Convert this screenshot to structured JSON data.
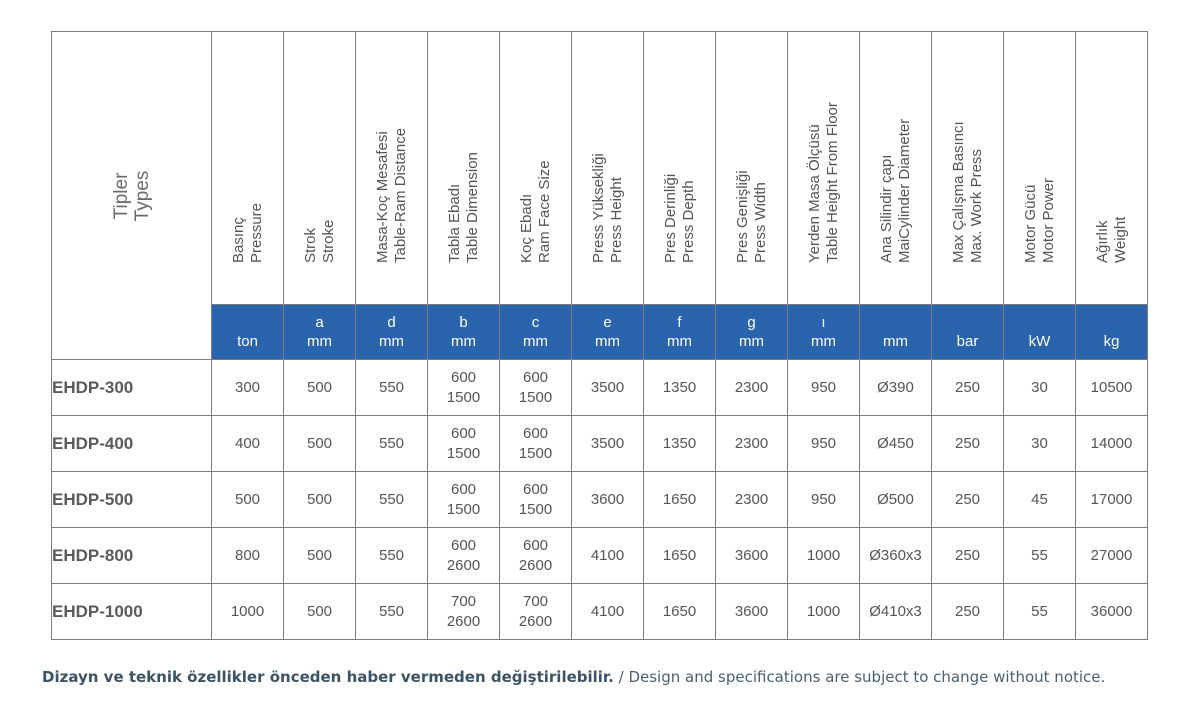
{
  "types_header": {
    "tr": "Tipler",
    "en": "Types"
  },
  "columns": [
    {
      "tr": "Basınç",
      "en": "Pressure",
      "sym": "",
      "unit": "ton"
    },
    {
      "tr": "Strok",
      "en": "Stroke",
      "sym": "a",
      "unit": "mm"
    },
    {
      "tr": "Masa-Koç Mesafesi",
      "en": "Table-Ram Distance",
      "sym": "d",
      "unit": "mm"
    },
    {
      "tr": "Tabla Ebadı",
      "en": "Table Dimension",
      "sym": "b",
      "unit": "mm"
    },
    {
      "tr": "Koç Ebadı",
      "en": "Ram Face Size",
      "sym": "c",
      "unit": "mm"
    },
    {
      "tr": "Press Yüksekliği",
      "en": "Press Height",
      "sym": "e",
      "unit": "mm"
    },
    {
      "tr": "Pres Derinliği",
      "en": "Press Depth",
      "sym": "f",
      "unit": "mm"
    },
    {
      "tr": "Pres Genişliği",
      "en": "Press Width",
      "sym": "g",
      "unit": "mm"
    },
    {
      "tr": "Yerden Masa Ölçüsü",
      "en": "Table Height From Floor",
      "sym": "ı",
      "unit": "mm"
    },
    {
      "tr": "Ana Silindir çapı",
      "en": "MaiCylinder Diameter",
      "sym": "",
      "unit": "mm"
    },
    {
      "tr": "Max Çalışma Basıncı",
      "en": "Max. Work Press",
      "sym": "",
      "unit": "bar"
    },
    {
      "tr": "Motor Gücü",
      "en": "Motor Power",
      "sym": "",
      "unit": "kW"
    },
    {
      "tr": "Ağırlık",
      "en": "Weight",
      "sym": "",
      "unit": "kg"
    }
  ],
  "rows": [
    {
      "name": "EHDP-300",
      "values": [
        "300",
        "500",
        "550",
        [
          "600",
          "1500"
        ],
        [
          "600",
          "1500"
        ],
        "3500",
        "1350",
        "2300",
        "950",
        "Ø390",
        "250",
        "30",
        "10500"
      ]
    },
    {
      "name": "EHDP-400",
      "values": [
        "400",
        "500",
        "550",
        [
          "600",
          "1500"
        ],
        [
          "600",
          "1500"
        ],
        "3500",
        "1350",
        "2300",
        "950",
        "Ø450",
        "250",
        "30",
        "14000"
      ]
    },
    {
      "name": "EHDP-500",
      "values": [
        "500",
        "500",
        "550",
        [
          "600",
          "1500"
        ],
        [
          "600",
          "1500"
        ],
        "3600",
        "1650",
        "2300",
        "950",
        "Ø500",
        "250",
        "45",
        "17000"
      ]
    },
    {
      "name": "EHDP-800",
      "values": [
        "800",
        "500",
        "550",
        [
          "600",
          "2600"
        ],
        [
          "600",
          "2600"
        ],
        "4100",
        "1650",
        "3600",
        "1000",
        "Ø360x3",
        "250",
        "55",
        "27000"
      ]
    },
    {
      "name": "EHDP-1000",
      "values": [
        "1000",
        "500",
        "550",
        [
          "700",
          "2600"
        ],
        [
          "700",
          "2600"
        ],
        "4100",
        "1650",
        "3600",
        "1000",
        "Ø410x3",
        "250",
        "55",
        "36000"
      ]
    }
  ],
  "note": {
    "bold": "Dizayn ve teknik özellikler önceden haber vermeden değiştirilebilir.",
    "regular": " / Design and specifications are subject to change without notice."
  }
}
